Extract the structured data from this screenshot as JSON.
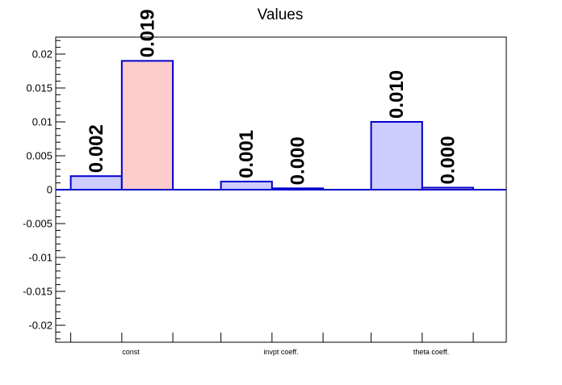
{
  "chart_data": {
    "type": "bar",
    "title": "Values",
    "categories": [
      "const",
      "invpt coeff.",
      "theta coeff."
    ],
    "series": [
      {
        "values": [
          0.002,
          0.0012,
          0.01
        ],
        "color": "#ccccff",
        "stroke": "#0000cc"
      },
      {
        "values": [
          0.019,
          0.0002,
          0.0003
        ],
        "color": "#ffcccc",
        "stroke": "#0000cc"
      }
    ],
    "data_labels": [
      [
        "0.002",
        "0.001",
        "0.010"
      ],
      [
        "0.019",
        "0.000",
        "0.000"
      ]
    ],
    "ylim": [
      -0.0225,
      0.0225
    ],
    "yticks": [
      -0.02,
      -0.015,
      -0.01,
      -0.005,
      0,
      0.005,
      0.01,
      0.015,
      0.02
    ],
    "ytick_labels": [
      "-0.02",
      "-0.015",
      "-0.01",
      "-0.005",
      "0",
      "0.005",
      "0.01",
      "0.015",
      "0.02"
    ],
    "xlabel": "",
    "ylabel": "",
    "grid": false,
    "zero_line_color": "#0000cc"
  }
}
